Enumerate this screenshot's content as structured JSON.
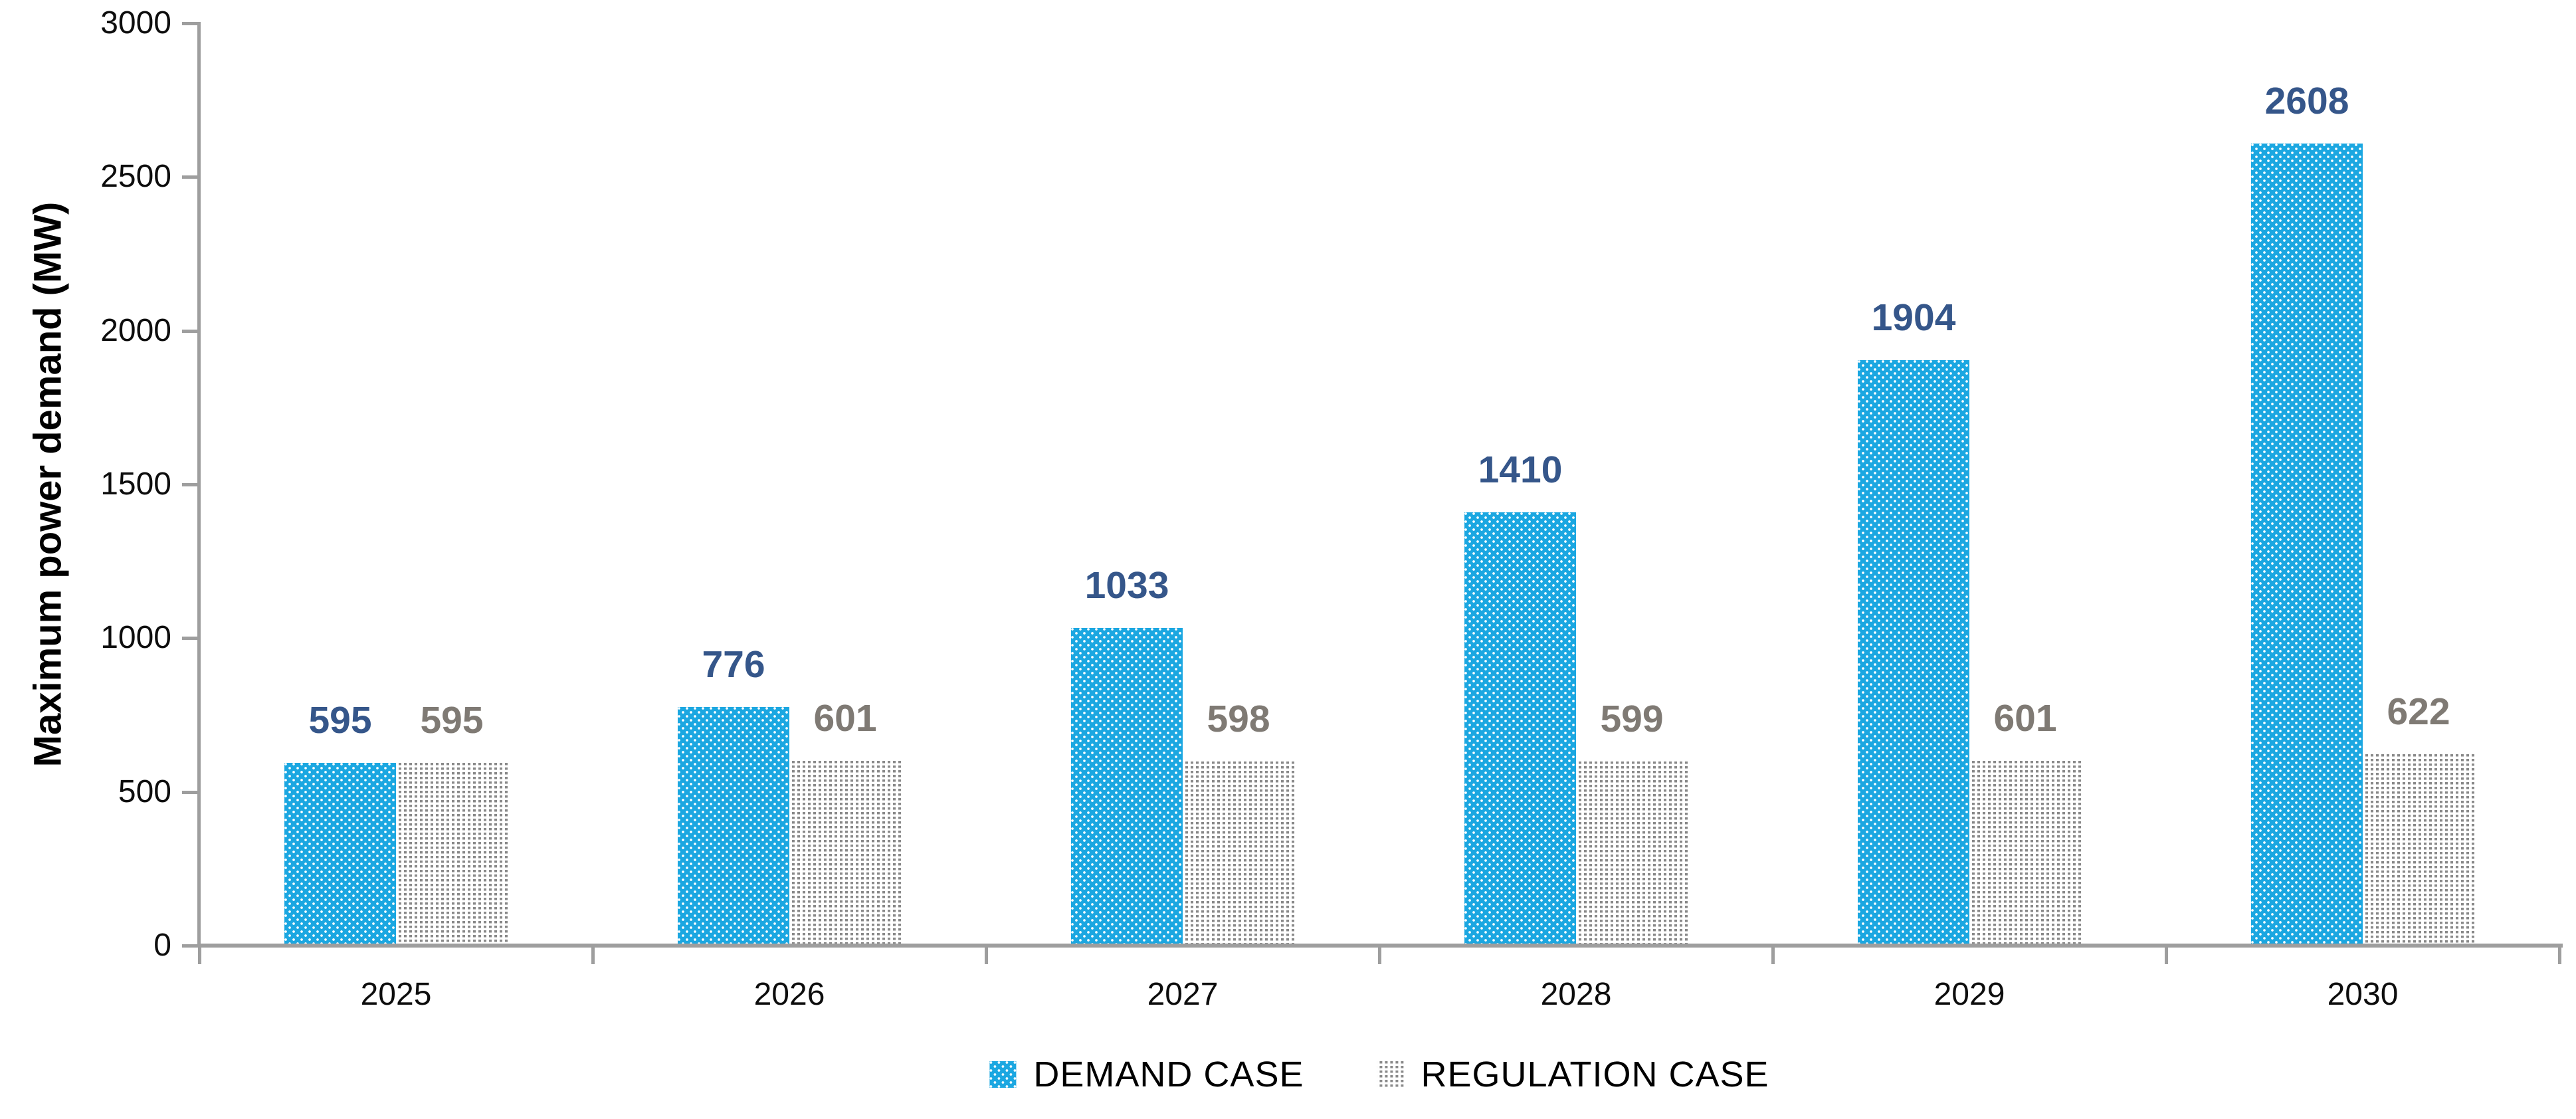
{
  "chart_data": {
    "type": "bar",
    "title": "",
    "xlabel": "",
    "ylabel": "Maximum power demand (MW)",
    "categories": [
      "2025",
      "2026",
      "2027",
      "2028",
      "2029",
      "2030"
    ],
    "series": [
      {
        "name": "DEMAND CASE",
        "values": [
          595,
          776,
          1033,
          1410,
          1904,
          2608
        ],
        "bar_color": "#1ba7e1",
        "pattern": "white-dots-on-blue",
        "label_color": "#35568a"
      },
      {
        "name": "REGULATION CASE",
        "values": [
          595,
          601,
          598,
          599,
          601,
          622
        ],
        "bar_color": "#898989",
        "pattern": "gray-dots-on-white",
        "label_color": "#7f7a74"
      }
    ],
    "ylim": [
      0,
      3000
    ],
    "yticks": [
      0,
      500,
      1000,
      1500,
      2000,
      2500,
      3000
    ],
    "grid": false,
    "legend_position": "bottom-center",
    "axis_color": "#9e9e9e",
    "tick_label_color": "#0d0d0d"
  }
}
